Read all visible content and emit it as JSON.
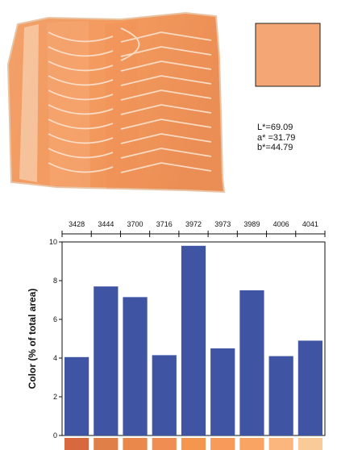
{
  "sample_color": {
    "swatch_hex": "#F4A774",
    "lab": {
      "L": "L*=69.09",
      "a": "a* =31.79",
      "b": "b*=44.79"
    }
  },
  "chart_data": {
    "type": "bar",
    "categories": [
      "3428",
      "3444",
      "3700",
      "3716",
      "3972",
      "3973",
      "3989",
      "4006",
      "4041"
    ],
    "values": [
      4.05,
      7.7,
      7.15,
      4.15,
      9.8,
      4.5,
      7.5,
      4.1,
      4.9
    ],
    "title": "",
    "xlabel": "",
    "ylabel": "Color (% of total area)",
    "ylim": [
      0,
      10
    ],
    "yticks": [
      "0",
      "2",
      "4",
      "6",
      "8",
      "10"
    ],
    "bar_color": "#3F55A4",
    "category_swatches": [
      "#D8693F",
      "#E08048",
      "#EA884C",
      "#F08D52",
      "#F5964F",
      "#F89A5A",
      "#F9A462",
      "#FBB67E",
      "#F9CB98"
    ],
    "grid": false,
    "legend": "none"
  }
}
